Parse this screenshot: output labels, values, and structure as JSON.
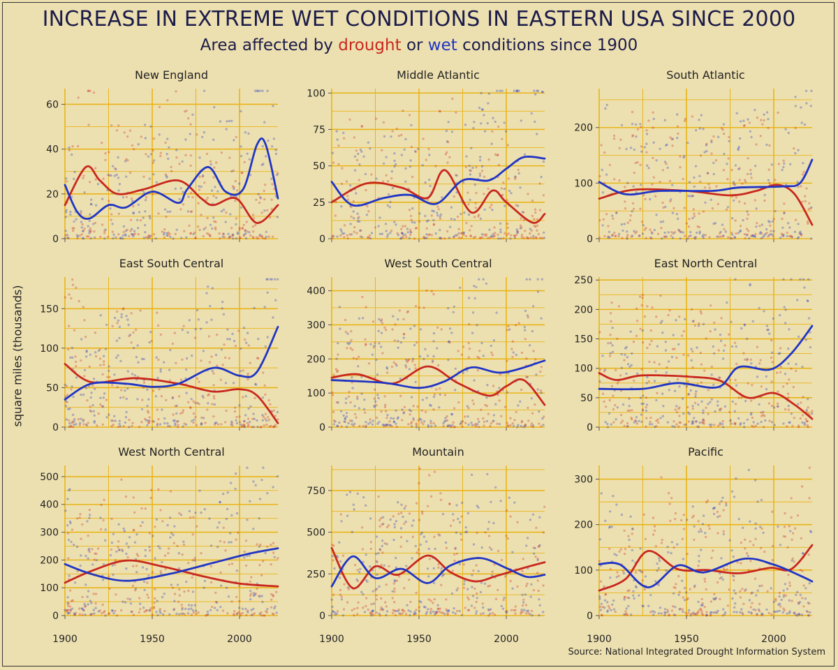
{
  "title": "INCREASE IN EXTREME WET CONDITIONS IN EASTERN USA SINCE 2000",
  "subtitle": {
    "part1": "Area affected by ",
    "drought": "drought",
    "part2": " or ",
    "wet": "wet",
    "part3": " conditions since 1900"
  },
  "ylabel": "square miles (thousands)",
  "source": "Source: National Integrated Drought Information System",
  "colors": {
    "background": "#ede0b0",
    "grid": "#e8b418",
    "drought": "#c8281e",
    "wet": "#2035c4"
  },
  "chart_data": [
    {
      "type": "scatter",
      "title": "New England",
      "xlim": [
        1900,
        2022
      ],
      "ylim": [
        0,
        67
      ],
      "x_ticks": [
        1900,
        1950,
        2000
      ],
      "y_ticks": [
        0,
        20,
        40,
        60
      ],
      "series": [
        {
          "name": "drought",
          "smooth": [
            [
              1900,
              15
            ],
            [
              1912,
              32
            ],
            [
              1920,
              26
            ],
            [
              1930,
              20
            ],
            [
              1945,
              22
            ],
            [
              1965,
              26
            ],
            [
              1978,
              18
            ],
            [
              1985,
              15
            ],
            [
              1998,
              18
            ],
            [
              2010,
              7
            ],
            [
              2022,
              15
            ]
          ]
        },
        {
          "name": "wet",
          "smooth": [
            [
              1900,
              24
            ],
            [
              1907,
              12
            ],
            [
              1914,
              9
            ],
            [
              1925,
              15
            ],
            [
              1935,
              14
            ],
            [
              1950,
              21
            ],
            [
              1965,
              16
            ],
            [
              1970,
              22
            ],
            [
              1982,
              32
            ],
            [
              1992,
              21
            ],
            [
              2002,
              22
            ],
            [
              2010,
              42
            ],
            [
              2015,
              42
            ],
            [
              2022,
              18
            ]
          ]
        }
      ]
    },
    {
      "type": "scatter",
      "title": "Middle Atlantic",
      "xlim": [
        1900,
        2022
      ],
      "ylim": [
        0,
        103
      ],
      "x_ticks": [
        1900,
        1950,
        2000
      ],
      "y_ticks": [
        0,
        25,
        50,
        75,
        100
      ],
      "series": [
        {
          "name": "drought",
          "smooth": [
            [
              1900,
              25
            ],
            [
              1920,
              38
            ],
            [
              1940,
              35
            ],
            [
              1955,
              28
            ],
            [
              1965,
              47
            ],
            [
              1980,
              18
            ],
            [
              1992,
              33
            ],
            [
              2000,
              25
            ],
            [
              2015,
              11
            ],
            [
              2022,
              17
            ]
          ]
        },
        {
          "name": "wet",
          "smooth": [
            [
              1900,
              39
            ],
            [
              1912,
              23
            ],
            [
              1930,
              28
            ],
            [
              1945,
              30
            ],
            [
              1960,
              24
            ],
            [
              1975,
              40
            ],
            [
              1990,
              40
            ],
            [
              2000,
              48
            ],
            [
              2010,
              56
            ],
            [
              2022,
              55
            ]
          ]
        }
      ]
    },
    {
      "type": "scatter",
      "title": "South Atlantic",
      "xlim": [
        1900,
        2022
      ],
      "ylim": [
        0,
        270
      ],
      "x_ticks": [
        1900,
        1950,
        2000
      ],
      "y_ticks": [
        0,
        100,
        200
      ],
      "series": [
        {
          "name": "drought",
          "smooth": [
            [
              1900,
              72
            ],
            [
              1920,
              88
            ],
            [
              1950,
              86
            ],
            [
              1975,
              78
            ],
            [
              1990,
              86
            ],
            [
              2002,
              97
            ],
            [
              2012,
              80
            ],
            [
              2022,
              25
            ]
          ]
        },
        {
          "name": "wet",
          "smooth": [
            [
              1900,
              102
            ],
            [
              1915,
              80
            ],
            [
              1935,
              86
            ],
            [
              1965,
              86
            ],
            [
              1980,
              92
            ],
            [
              2005,
              94
            ],
            [
              2015,
              100
            ],
            [
              2022,
              142
            ]
          ]
        }
      ]
    },
    {
      "type": "scatter",
      "title": "East South Central",
      "xlim": [
        1900,
        2022
      ],
      "ylim": [
        0,
        190
      ],
      "x_ticks": [
        1900,
        1950,
        2000
      ],
      "y_ticks": [
        0,
        50,
        100,
        150
      ],
      "series": [
        {
          "name": "drought",
          "smooth": [
            [
              1900,
              80
            ],
            [
              1915,
              57
            ],
            [
              1940,
              62
            ],
            [
              1965,
              55
            ],
            [
              1985,
              45
            ],
            [
              2000,
              48
            ],
            [
              2010,
              40
            ],
            [
              2022,
              5
            ]
          ]
        },
        {
          "name": "wet",
          "smooth": [
            [
              1900,
              35
            ],
            [
              1915,
              55
            ],
            [
              1935,
              55
            ],
            [
              1950,
              51
            ],
            [
              1965,
              55
            ],
            [
              1985,
              75
            ],
            [
              2000,
              65
            ],
            [
              2010,
              70
            ],
            [
              2022,
              127
            ]
          ]
        }
      ]
    },
    {
      "type": "scatter",
      "title": "West South Central",
      "xlim": [
        1900,
        2022
      ],
      "ylim": [
        0,
        440
      ],
      "x_ticks": [
        1900,
        1950,
        2000
      ],
      "y_ticks": [
        0,
        100,
        200,
        300,
        400
      ],
      "series": [
        {
          "name": "drought",
          "smooth": [
            [
              1900,
              145
            ],
            [
              1915,
              155
            ],
            [
              1935,
              128
            ],
            [
              1955,
              178
            ],
            [
              1972,
              130
            ],
            [
              1990,
              92
            ],
            [
              2000,
              120
            ],
            [
              2010,
              138
            ],
            [
              2022,
              65
            ]
          ]
        },
        {
          "name": "wet",
          "smooth": [
            [
              1900,
              138
            ],
            [
              1930,
              130
            ],
            [
              1950,
              115
            ],
            [
              1965,
              135
            ],
            [
              1980,
              175
            ],
            [
              1998,
              160
            ],
            [
              2022,
              195
            ]
          ]
        }
      ]
    },
    {
      "type": "scatter",
      "title": "East North Central",
      "xlim": [
        1900,
        2022
      ],
      "ylim": [
        0,
        255
      ],
      "x_ticks": [
        1900,
        1950,
        2000
      ],
      "y_ticks": [
        0,
        50,
        100,
        150,
        200,
        250
      ],
      "series": [
        {
          "name": "drought",
          "smooth": [
            [
              1900,
              92
            ],
            [
              1910,
              80
            ],
            [
              1925,
              88
            ],
            [
              1955,
              85
            ],
            [
              1970,
              78
            ],
            [
              1985,
              50
            ],
            [
              2000,
              58
            ],
            [
              2012,
              38
            ],
            [
              2022,
              14
            ]
          ]
        },
        {
          "name": "wet",
          "smooth": [
            [
              1900,
              65
            ],
            [
              1925,
              65
            ],
            [
              1945,
              75
            ],
            [
              1968,
              68
            ],
            [
              1980,
              102
            ],
            [
              1998,
              98
            ],
            [
              2010,
              125
            ],
            [
              2022,
              172
            ]
          ]
        }
      ]
    },
    {
      "type": "scatter",
      "title": "West North Central",
      "xlim": [
        1900,
        2022
      ],
      "ylim": [
        0,
        540
      ],
      "x_ticks": [
        1900,
        1950,
        2000
      ],
      "y_ticks": [
        0,
        100,
        200,
        300,
        400,
        500
      ],
      "series": [
        {
          "name": "drought",
          "smooth": [
            [
              1900,
              118
            ],
            [
              1915,
              160
            ],
            [
              1935,
              198
            ],
            [
              1955,
              178
            ],
            [
              1980,
              140
            ],
            [
              2000,
              115
            ],
            [
              2022,
              105
            ]
          ]
        },
        {
          "name": "wet",
          "smooth": [
            [
              1900,
              185
            ],
            [
              1915,
              150
            ],
            [
              1935,
              125
            ],
            [
              1960,
              150
            ],
            [
              1985,
              190
            ],
            [
              2005,
              222
            ],
            [
              2022,
              242
            ]
          ]
        }
      ]
    },
    {
      "type": "scatter",
      "title": "Mountain",
      "xlim": [
        1900,
        2022
      ],
      "ylim": [
        0,
        900
      ],
      "x_ticks": [
        1900,
        1950,
        2000
      ],
      "y_ticks": [
        0,
        250,
        500,
        750
      ],
      "series": [
        {
          "name": "drought",
          "smooth": [
            [
              1900,
              405
            ],
            [
              1912,
              165
            ],
            [
              1925,
              295
            ],
            [
              1938,
              245
            ],
            [
              1955,
              360
            ],
            [
              1968,
              260
            ],
            [
              1982,
              205
            ],
            [
              1995,
              240
            ],
            [
              2008,
              280
            ],
            [
              2022,
              320
            ]
          ]
        },
        {
          "name": "wet",
          "smooth": [
            [
              1900,
              175
            ],
            [
              1912,
              355
            ],
            [
              1925,
              225
            ],
            [
              1940,
              280
            ],
            [
              1955,
              195
            ],
            [
              1968,
              300
            ],
            [
              1985,
              345
            ],
            [
              2000,
              285
            ],
            [
              2012,
              232
            ],
            [
              2022,
              245
            ]
          ]
        }
      ]
    },
    {
      "type": "scatter",
      "title": "Pacific",
      "xlim": [
        1900,
        2022
      ],
      "ylim": [
        0,
        330
      ],
      "x_ticks": [
        1900,
        1950,
        2000
      ],
      "y_ticks": [
        0,
        100,
        200,
        300
      ],
      "series": [
        {
          "name": "drought",
          "smooth": [
            [
              1900,
              55
            ],
            [
              1915,
              80
            ],
            [
              1928,
              142
            ],
            [
              1945,
              102
            ],
            [
              1962,
              100
            ],
            [
              1980,
              93
            ],
            [
              1998,
              105
            ],
            [
              2010,
              102
            ],
            [
              2022,
              155
            ]
          ]
        },
        {
          "name": "wet",
          "smooth": [
            [
              1900,
              113
            ],
            [
              1912,
              112
            ],
            [
              1928,
              62
            ],
            [
              1945,
              110
            ],
            [
              1960,
              95
            ],
            [
              1983,
              125
            ],
            [
              2000,
              112
            ],
            [
              2015,
              88
            ],
            [
              2022,
              75
            ]
          ]
        }
      ]
    }
  ]
}
